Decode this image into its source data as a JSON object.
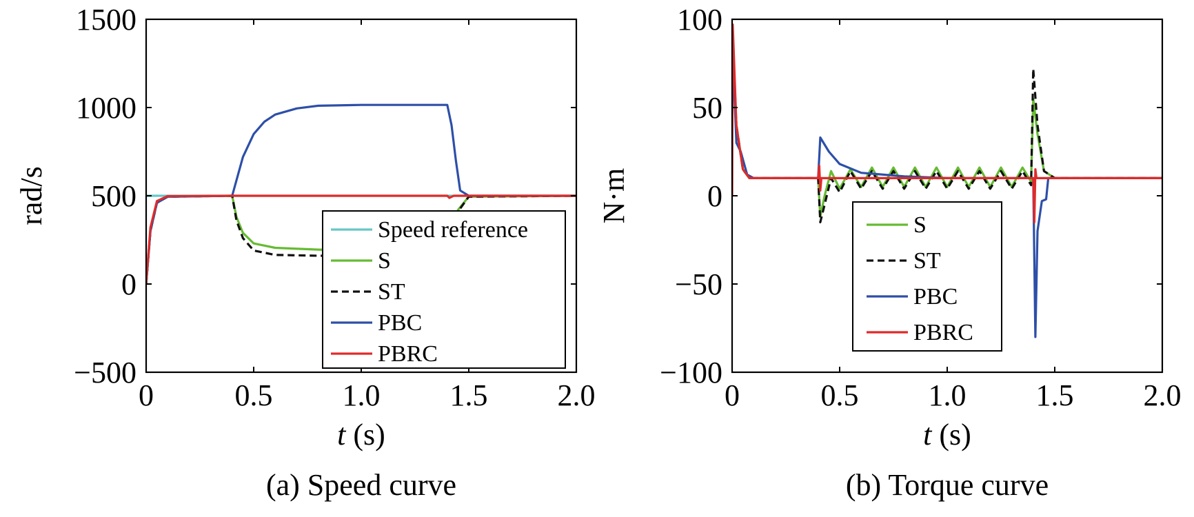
{
  "chart_data": [
    {
      "type": "line",
      "caption": "(a) Speed curve",
      "xlabel_var": "t",
      "xlabel_unit": " (s)",
      "ylabel": "rad/s",
      "xlim": [
        0,
        2.0
      ],
      "ylim": [
        -500,
        1500
      ],
      "xticks": [
        "0",
        "0.5",
        "1.0",
        "1.5",
        "2.0"
      ],
      "yticks": [
        "1500",
        "1000",
        "500",
        "0",
        "−500"
      ],
      "grid": false,
      "legend_position": "bottom-right",
      "series": [
        {
          "name": "Speed reference",
          "color": "#66c7c7",
          "dash": "solid",
          "points": [
            [
              0,
              500
            ],
            [
              2.0,
              500
            ]
          ]
        },
        {
          "name": "S",
          "color": "#66bb33",
          "dash": "solid",
          "points": [
            [
              0,
              0
            ],
            [
              0.02,
              300
            ],
            [
              0.05,
              460
            ],
            [
              0.1,
              495
            ],
            [
              0.4,
              500
            ],
            [
              0.42,
              380
            ],
            [
              0.45,
              290
            ],
            [
              0.5,
              230
            ],
            [
              0.6,
              205
            ],
            [
              0.8,
              195
            ],
            [
              1.0,
              190
            ],
            [
              1.2,
              190
            ],
            [
              1.4,
              190
            ],
            [
              1.42,
              250
            ],
            [
              1.45,
              420
            ],
            [
              1.5,
              495
            ],
            [
              2.0,
              500
            ]
          ]
        },
        {
          "name": "ST",
          "color": "#111111",
          "dash": "dashed",
          "points": [
            [
              0,
              0
            ],
            [
              0.02,
              300
            ],
            [
              0.05,
              460
            ],
            [
              0.1,
              495
            ],
            [
              0.4,
              500
            ],
            [
              0.42,
              360
            ],
            [
              0.45,
              260
            ],
            [
              0.5,
              190
            ],
            [
              0.6,
              165
            ],
            [
              0.8,
              160
            ],
            [
              1.0,
              158
            ],
            [
              1.2,
              158
            ],
            [
              1.4,
              158
            ],
            [
              1.42,
              230
            ],
            [
              1.45,
              410
            ],
            [
              1.5,
              495
            ],
            [
              2.0,
              500
            ]
          ]
        },
        {
          "name": "PBC",
          "color": "#2d4fa8",
          "dash": "solid",
          "points": [
            [
              0,
              0
            ],
            [
              0.02,
              300
            ],
            [
              0.05,
              460
            ],
            [
              0.1,
              495
            ],
            [
              0.4,
              500
            ],
            [
              0.45,
              720
            ],
            [
              0.5,
              850
            ],
            [
              0.55,
              920
            ],
            [
              0.6,
              960
            ],
            [
              0.7,
              995
            ],
            [
              0.8,
              1010
            ],
            [
              1.0,
              1015
            ],
            [
              1.2,
              1015
            ],
            [
              1.4,
              1015
            ],
            [
              1.42,
              900
            ],
            [
              1.44,
              700
            ],
            [
              1.46,
              530
            ],
            [
              1.5,
              500
            ],
            [
              2.0,
              500
            ]
          ]
        },
        {
          "name": "PBRC",
          "color": "#e02a2a",
          "dash": "solid",
          "points": [
            [
              0,
              0
            ],
            [
              0.02,
              320
            ],
            [
              0.05,
              470
            ],
            [
              0.1,
              498
            ],
            [
              0.4,
              500
            ],
            [
              1.4,
              500
            ],
            [
              1.41,
              488
            ],
            [
              1.43,
              500
            ],
            [
              2.0,
              500
            ]
          ]
        }
      ]
    },
    {
      "type": "line",
      "caption": "(b) Torque curve",
      "xlabel_var": "t",
      "xlabel_unit": " (s)",
      "ylabel": "N·m",
      "xlim": [
        0,
        2.0
      ],
      "ylim": [
        -100,
        100
      ],
      "xticks": [
        "0",
        "0.5",
        "1.0",
        "1.5",
        "2.0"
      ],
      "yticks": [
        "100",
        "50",
        "0",
        "−50",
        "−100"
      ],
      "grid": false,
      "legend_position": "bottom-center",
      "series": [
        {
          "name": "S",
          "color": "#66bb33",
          "dash": "solid",
          "points": [
            [
              0,
              95
            ],
            [
              0.02,
              40
            ],
            [
              0.05,
              15
            ],
            [
              0.08,
              10
            ],
            [
              0.4,
              10
            ],
            [
              0.41,
              -12
            ],
            [
              0.43,
              0
            ],
            [
              0.46,
              14
            ],
            [
              0.5,
              4
            ],
            [
              0.55,
              15
            ],
            [
              0.6,
              5
            ],
            [
              0.65,
              16
            ],
            [
              0.7,
              5
            ],
            [
              0.75,
              16
            ],
            [
              0.8,
              5
            ],
            [
              0.85,
              16
            ],
            [
              0.9,
              5
            ],
            [
              0.95,
              16
            ],
            [
              1.0,
              5
            ],
            [
              1.05,
              16
            ],
            [
              1.1,
              5
            ],
            [
              1.15,
              16
            ],
            [
              1.2,
              5
            ],
            [
              1.25,
              16
            ],
            [
              1.3,
              5
            ],
            [
              1.35,
              16
            ],
            [
              1.39,
              8
            ],
            [
              1.4,
              55
            ],
            [
              1.42,
              35
            ],
            [
              1.45,
              14
            ],
            [
              1.5,
              10
            ],
            [
              2.0,
              10
            ]
          ]
        },
        {
          "name": "ST",
          "color": "#111111",
          "dash": "dashed",
          "points": [
            [
              0,
              95
            ],
            [
              0.02,
              40
            ],
            [
              0.05,
              15
            ],
            [
              0.08,
              10
            ],
            [
              0.4,
              10
            ],
            [
              0.41,
              -15
            ],
            [
              0.43,
              -5
            ],
            [
              0.46,
              10
            ],
            [
              0.5,
              2
            ],
            [
              0.55,
              14
            ],
            [
              0.6,
              4
            ],
            [
              0.65,
              14
            ],
            [
              0.7,
              4
            ],
            [
              0.75,
              14
            ],
            [
              0.8,
              4
            ],
            [
              0.85,
              14
            ],
            [
              0.9,
              4
            ],
            [
              0.95,
              14
            ],
            [
              1.0,
              4
            ],
            [
              1.05,
              14
            ],
            [
              1.1,
              4
            ],
            [
              1.15,
              14
            ],
            [
              1.2,
              4
            ],
            [
              1.25,
              14
            ],
            [
              1.3,
              4
            ],
            [
              1.35,
              14
            ],
            [
              1.39,
              6
            ],
            [
              1.4,
              72
            ],
            [
              1.42,
              40
            ],
            [
              1.45,
              14
            ],
            [
              1.5,
              10
            ],
            [
              2.0,
              10
            ]
          ]
        },
        {
          "name": "PBC",
          "color": "#2d4fa8",
          "dash": "solid",
          "points": [
            [
              0,
              95
            ],
            [
              0.01,
              60
            ],
            [
              0.02,
              30
            ],
            [
              0.04,
              25
            ],
            [
              0.07,
              12
            ],
            [
              0.1,
              10
            ],
            [
              0.4,
              10
            ],
            [
              0.41,
              33
            ],
            [
              0.45,
              25
            ],
            [
              0.5,
              18
            ],
            [
              0.6,
              13
            ],
            [
              0.8,
              11
            ],
            [
              1.0,
              10
            ],
            [
              1.2,
              10
            ],
            [
              1.4,
              10
            ],
            [
              1.41,
              -80
            ],
            [
              1.42,
              -20
            ],
            [
              1.44,
              -3
            ],
            [
              1.46,
              -2
            ],
            [
              1.47,
              10
            ],
            [
              2.0,
              10
            ]
          ]
        },
        {
          "name": "PBRC",
          "color": "#e02a2a",
          "dash": "solid",
          "points": [
            [
              0,
              0
            ],
            [
              0.003,
              97
            ],
            [
              0.02,
              40
            ],
            [
              0.05,
              15
            ],
            [
              0.08,
              10
            ],
            [
              0.4,
              10
            ],
            [
              0.405,
              17
            ],
            [
              0.41,
              3
            ],
            [
              0.415,
              10
            ],
            [
              1.4,
              10
            ],
            [
              1.405,
              -15
            ],
            [
              1.41,
              15
            ],
            [
              1.415,
              10
            ],
            [
              2.0,
              10
            ]
          ]
        }
      ]
    }
  ]
}
